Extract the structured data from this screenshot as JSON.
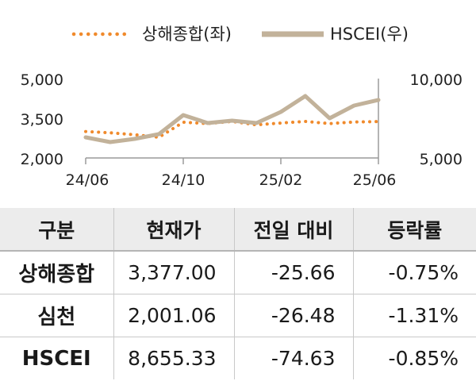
{
  "chart_data": {
    "type": "line",
    "legend": [
      {
        "label": "상해종합(좌)",
        "color": "#f08a2c",
        "style": "dotted"
      },
      {
        "label": "HSCEI(우)",
        "color": "#c2b29a",
        "style": "solid"
      }
    ],
    "legend_position": "top",
    "x_tick_labels": [
      "24/06",
      "24/10",
      "25/02",
      "25/06"
    ],
    "y_left": {
      "ticks": [
        "5,000",
        "3,500",
        "2,000"
      ],
      "range": [
        2000,
        5000
      ]
    },
    "y_right": {
      "ticks": [
        "10,000",
        "5,000"
      ],
      "range": [
        5000,
        10000
      ]
    },
    "grid": false,
    "series": [
      {
        "name": "상해종합(좌)",
        "axis": "left",
        "color": "#f08a2c",
        "x": [
          "24/06",
          "24/07",
          "24/08",
          "24/09",
          "24/10",
          "24/11",
          "24/12",
          "25/01",
          "25/02",
          "25/03",
          "25/04",
          "25/05",
          "25/06"
        ],
        "values": [
          3000,
          2950,
          2880,
          2780,
          3350,
          3300,
          3380,
          3250,
          3320,
          3380,
          3300,
          3360,
          3377
        ]
      },
      {
        "name": "HSCEI(우)",
        "axis": "right",
        "color": "#c2b29a",
        "x": [
          "24/06",
          "24/07",
          "24/08",
          "24/09",
          "24/10",
          "24/11",
          "24/12",
          "25/01",
          "25/02",
          "25/03",
          "25/04",
          "25/05",
          "25/06"
        ],
        "values": [
          6300,
          6000,
          6200,
          6500,
          7700,
          7200,
          7350,
          7200,
          7900,
          8900,
          7500,
          8300,
          8655
        ]
      }
    ]
  },
  "table": {
    "headers": [
      "구분",
      "현재가",
      "전일 대비",
      "등락률"
    ],
    "rows": [
      {
        "name": "상해종합",
        "price": "3,377.00",
        "change": "-25.66",
        "pct": "-0.75%"
      },
      {
        "name": "심천",
        "price": "2,001.06",
        "change": "-26.48",
        "pct": "-1.31%"
      },
      {
        "name": "HSCEI",
        "price": "8,655.33",
        "change": "-74.63",
        "pct": "-0.85%"
      }
    ]
  }
}
